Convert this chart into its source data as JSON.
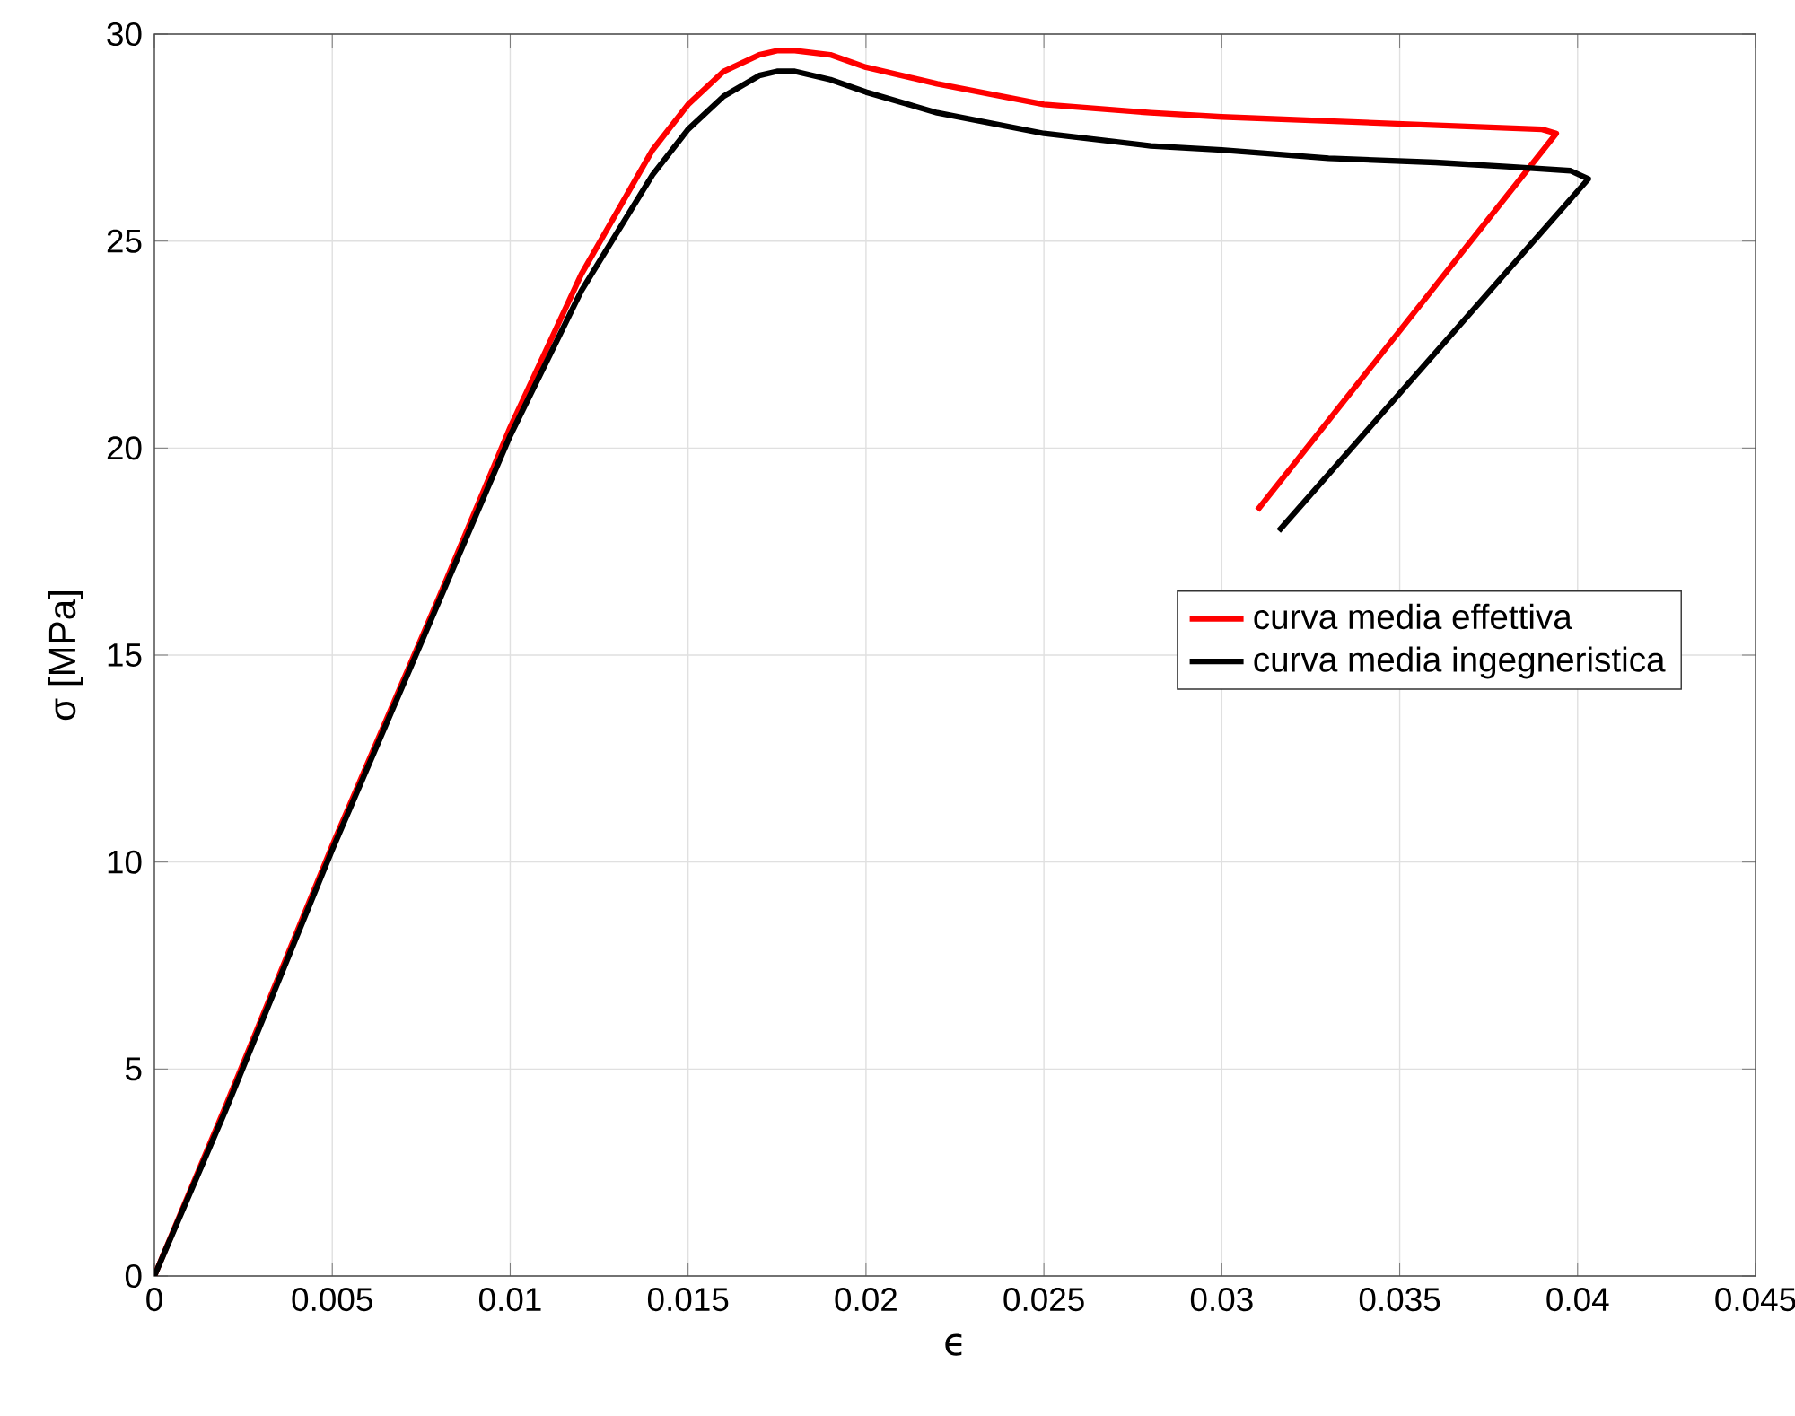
{
  "chart_data": {
    "type": "line",
    "xlabel": "ϵ",
    "ylabel": "σ [MPa]",
    "xlim": [
      0,
      0.045
    ],
    "ylim": [
      0,
      30
    ],
    "xticks": [
      0,
      0.005,
      0.01,
      0.015,
      0.02,
      0.025,
      0.03,
      0.035,
      0.04,
      0.045
    ],
    "yticks": [
      0,
      5,
      10,
      15,
      20,
      25,
      30
    ],
    "grid": true,
    "legend": "right",
    "line_style": "solid",
    "marker": "none",
    "series": [
      {
        "name": "curva media effettiva",
        "color": "#ff0000",
        "x": [
          0,
          0.002,
          0.005,
          0.008,
          0.01,
          0.012,
          0.014,
          0.015,
          0.016,
          0.017,
          0.0175,
          0.018,
          0.019,
          0.02,
          0.022,
          0.025,
          0.028,
          0.03,
          0.033,
          0.036,
          0.039,
          0.0394,
          0.031
        ],
        "values": [
          0,
          4.1,
          10.4,
          16.4,
          20.5,
          24.2,
          27.2,
          28.3,
          29.1,
          29.5,
          29.6,
          29.6,
          29.5,
          29.2,
          28.8,
          28.3,
          28.1,
          28.0,
          27.9,
          27.8,
          27.7,
          27.6,
          18.5
        ]
      },
      {
        "name": "curva media ingegneristica",
        "color": "#000000",
        "x": [
          0,
          0.002,
          0.005,
          0.008,
          0.01,
          0.012,
          0.014,
          0.015,
          0.016,
          0.017,
          0.0175,
          0.018,
          0.019,
          0.02,
          0.022,
          0.025,
          0.028,
          0.03,
          0.033,
          0.036,
          0.038,
          0.0398,
          0.0403,
          0.0316
        ],
        "values": [
          0,
          4.0,
          10.3,
          16.3,
          20.3,
          23.8,
          26.6,
          27.7,
          28.5,
          29.0,
          29.1,
          29.1,
          28.9,
          28.6,
          28.1,
          27.6,
          27.3,
          27.2,
          27.0,
          26.9,
          26.8,
          26.7,
          26.5,
          18.0
        ]
      }
    ]
  }
}
